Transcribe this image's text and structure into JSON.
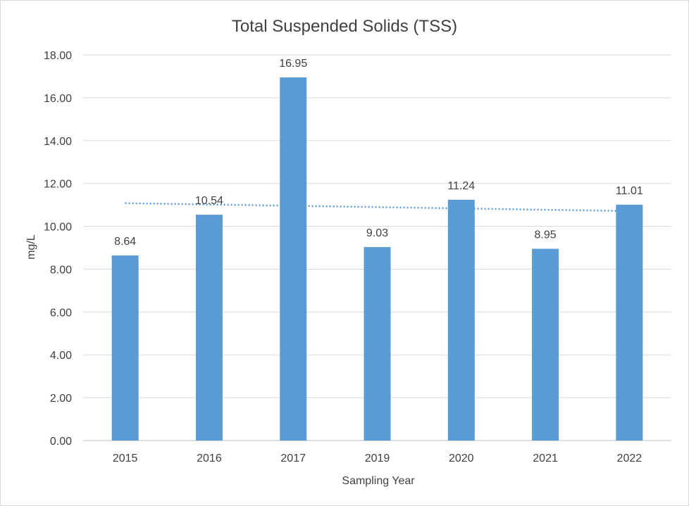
{
  "chart_data": {
    "type": "bar",
    "title": "Total Suspended Solids (TSS)",
    "xlabel": "Sampling Year",
    "ylabel": "mg/L",
    "categories": [
      "2015",
      "2016",
      "2017",
      "2019",
      "2020",
      "2021",
      "2022"
    ],
    "values": [
      8.64,
      10.54,
      16.95,
      9.03,
      11.24,
      8.95,
      11.01
    ],
    "data_labels": [
      "8.64",
      "10.54",
      "16.95",
      "9.03",
      "11.24",
      "8.95",
      "11.01"
    ],
    "ylim": [
      0,
      18
    ],
    "yticks": [
      0,
      2,
      4,
      6,
      8,
      10,
      12,
      14,
      16,
      18
    ],
    "ytick_labels": [
      "0.00",
      "2.00",
      "4.00",
      "6.00",
      "8.00",
      "10.00",
      "12.00",
      "14.00",
      "16.00",
      "18.00"
    ],
    "grid": true,
    "trendline": {
      "type": "linear",
      "style": "dotted",
      "start": 11.08,
      "end": 10.71
    },
    "colors": {
      "bar": "#5b9bd5",
      "trendline": "#5b9bd5",
      "grid": "#d9d9d9",
      "text": "#404040"
    }
  }
}
